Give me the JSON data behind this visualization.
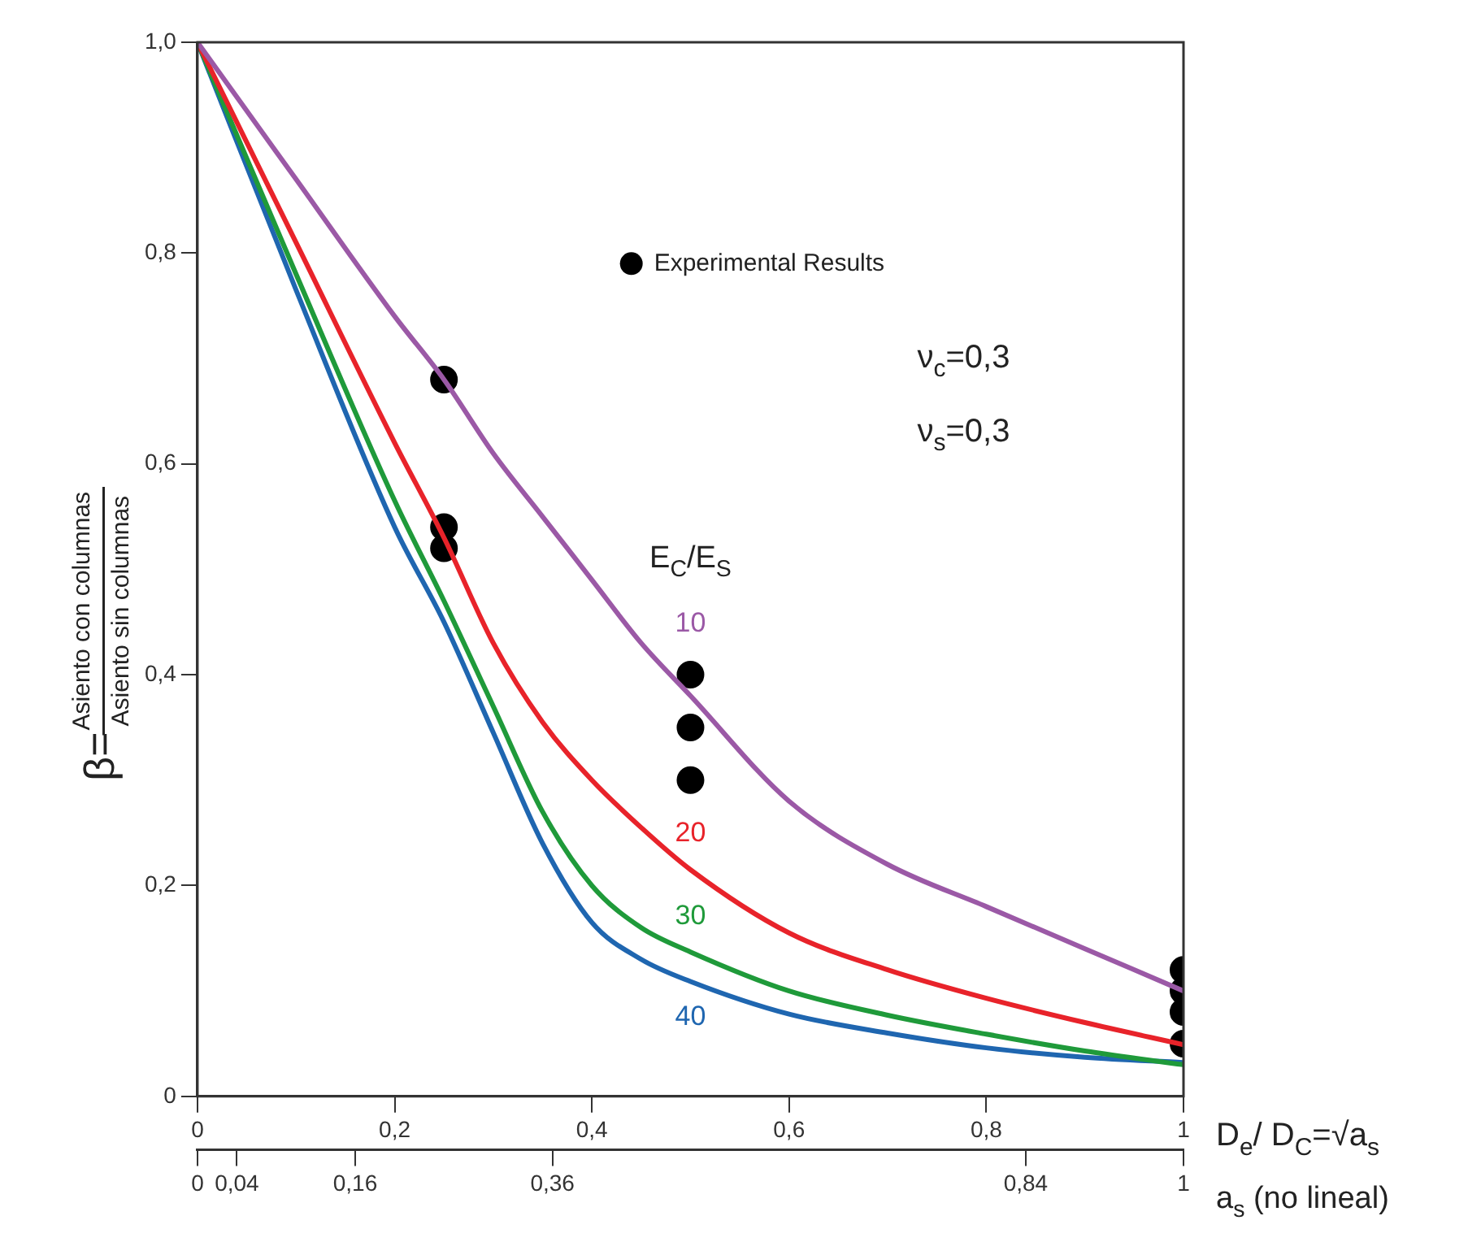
{
  "chart_data": {
    "type": "line",
    "xlabel": "D$_{e}$/ D$_{C}$=√a$_{s}$",
    "x2label": "a$_{s}$ (no lineal)",
    "ylabel": "β=Asiento con columnas\nAsiento sin columnas",
    "xlim": [
      0,
      1
    ],
    "xticks": [
      0,
      {
        "value": 0.2,
        "label": "0,2"
      },
      {
        "value": 0.4,
        "label": "0,4"
      },
      {
        "value": 0.6,
        "label": "0,6"
      },
      {
        "value": 0.8,
        "label": "0,8"
      },
      1
    ],
    "x2lim": [
      0,
      1
    ],
    "x2ticks": [
      0,
      {
        "value": 0.04,
        "label": "0,04"
      },
      {
        "value": 0.16,
        "label": "0,16"
      },
      {
        "value": 0.36,
        "label": "0,36"
      },
      {
        "value": 0.84,
        "label": "0,84"
      },
      1
    ],
    "ylim": [
      0,
      1
    ],
    "yticks": [
      0,
      {
        "value": 0.2,
        "label": "0,2"
      },
      {
        "value": 0.4,
        "label": "0,4"
      },
      {
        "value": 0.6,
        "label": "0,6"
      },
      {
        "value": 0.8,
        "label": "0,8"
      },
      {
        "value": 1,
        "label": "1,0"
      }
    ],
    "grid": false,
    "legend": "top right",
    "marker": "none",
    "line_style": "solid",
    "annotations": [
      "ν$_{c}$=0,3",
      "ν$_{s}$=0,3",
      "E$_{C}$/E$_{S}$"
    ],
    "series": [
      {
        "name": "10",
        "color": "#9b59a6",
        "x": [
          0,
          0.1,
          0.2,
          0.25,
          0.3,
          0.35,
          0.4,
          0.45,
          0.5,
          0.6,
          0.7,
          0.8,
          0.9,
          1
        ],
        "values": [
          1,
          0.87,
          0.74,
          0.68,
          0.61,
          0.55,
          0.49,
          0.43,
          0.38,
          0.28,
          0.22,
          0.18,
          0.14,
          0.1
        ]
      },
      {
        "name": "20",
        "color": "#e8232a",
        "x": [
          0,
          0.1,
          0.2,
          0.25,
          0.3,
          0.35,
          0.4,
          0.45,
          0.5,
          0.6,
          0.7,
          0.8,
          0.9,
          1
        ],
        "values": [
          1,
          0.81,
          0.62,
          0.53,
          0.43,
          0.355,
          0.3,
          0.255,
          0.215,
          0.155,
          0.12,
          0.093,
          0.07,
          0.049
        ]
      },
      {
        "name": "30",
        "color": "#1f9a3a",
        "x": [
          0,
          0.1,
          0.2,
          0.25,
          0.3,
          0.35,
          0.4,
          0.45,
          0.5,
          0.6,
          0.7,
          0.8,
          0.9,
          1
        ],
        "values": [
          1,
          0.78,
          0.565,
          0.47,
          0.37,
          0.27,
          0.2,
          0.16,
          0.137,
          0.1,
          0.077,
          0.059,
          0.043,
          0.03
        ]
      },
      {
        "name": "40",
        "color": "#1f66b0",
        "x": [
          0,
          0.1,
          0.2,
          0.25,
          0.3,
          0.35,
          0.4,
          0.45,
          0.5,
          0.6,
          0.7,
          0.8,
          0.9,
          1
        ],
        "values": [
          1,
          0.765,
          0.54,
          0.45,
          0.345,
          0.24,
          0.165,
          0.13,
          0.109,
          0.078,
          0.06,
          0.046,
          0.037,
          0.032
        ]
      },
      {
        "name": "Experimental Results",
        "type": "scatter",
        "marker": "circle",
        "color": "#000000",
        "x": [
          0.25,
          0.25,
          0.25,
          0.5,
          0.5,
          0.5,
          1,
          1,
          1,
          1
        ],
        "values": [
          0.68,
          0.54,
          0.52,
          0.4,
          0.35,
          0.3,
          0.12,
          0.1,
          0.08,
          0.05
        ]
      }
    ]
  }
}
